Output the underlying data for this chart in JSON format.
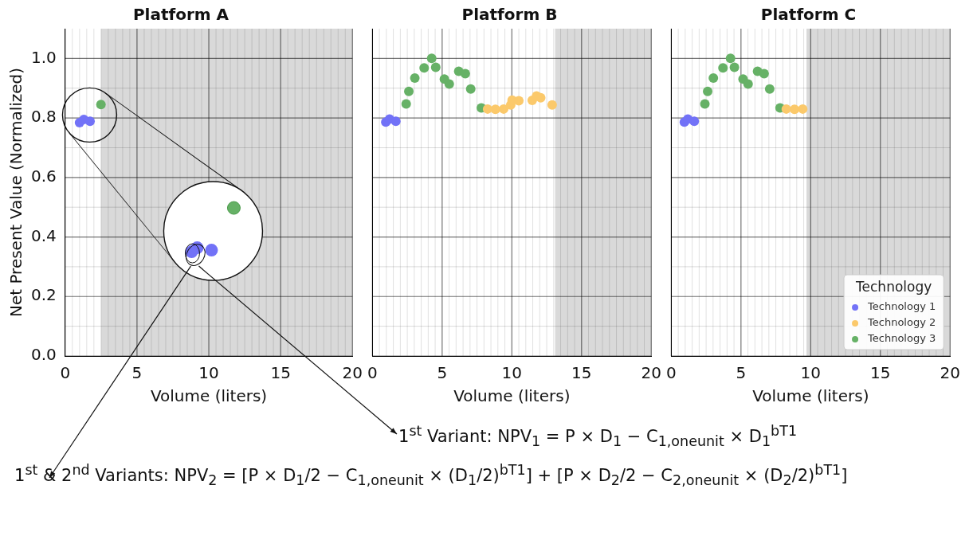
{
  "chart_data": [
    {
      "type": "scatter",
      "title": "Platform A",
      "xlabel": "Volume (liters)",
      "ylabel": "Net Present Value (Normalized)",
      "xlim": [
        0,
        20
      ],
      "ylim": [
        0,
        1.1
      ],
      "xticks": [
        0,
        5,
        10,
        15,
        20
      ],
      "yticks": [
        {
          "value": 0,
          "label": "0.0"
        },
        {
          "value": 0.2,
          "label": "0.2"
        },
        {
          "value": 0.4,
          "label": "0.4"
        },
        {
          "value": 0.6,
          "label": "0.6"
        },
        {
          "value": 0.8,
          "label": "0.8"
        },
        {
          "value": 1,
          "label": "1.0"
        }
      ],
      "grid": true,
      "legend": false,
      "marker": "circle",
      "bands": [
        {
          "axis": "x",
          "from": 2.5,
          "to": 20,
          "color": "#d9d9d9"
        }
      ],
      "series": [
        {
          "color": "#7272f7",
          "x": [
            1.0,
            1.3,
            1.73
          ],
          "values": [
            0.784,
            0.795,
            0.789
          ]
        },
        {
          "color": "#66b166",
          "x": [
            2.49
          ],
          "values": [
            0.845
          ]
        }
      ],
      "annotations": [
        "1$^{st}$ Variant: NPV$_{1}$ = P × D$_{1}$ − C$_{1,oneunit}$ × D$_{1}$$^{bT1}$",
        "1$^{st}$ & 2$^{nd}$ Variants: NPV$_{2}$ = [P × D$_{1}$/2 − C$_{1,oneunit}$ × (D$_{1}$/2)$^{bT1}$] + [P × D$_{2}$/2 − C$_{2,oneunit}$ × (D$_{2}$/2)$^{bT1}$]"
      ]
    },
    {
      "type": "scatter",
      "title": "Platform B",
      "xlabel": "Volume (liters)",
      "xlim": [
        0,
        20
      ],
      "ylim": [
        0,
        1.1
      ],
      "xticks": [
        0,
        5,
        10,
        15,
        20
      ],
      "yticks": [
        {
          "value": 0,
          "label": null
        },
        {
          "value": 0.2,
          "label": null
        },
        {
          "value": 0.4,
          "label": null
        },
        {
          "value": 0.6,
          "label": null
        },
        {
          "value": 0.8,
          "label": null
        },
        {
          "value": 1,
          "label": null
        }
      ],
      "tick_labels": "x",
      "grid": true,
      "legend": false,
      "marker": "circle",
      "bands": [
        {
          "axis": "x",
          "from": 13.1,
          "to": 20,
          "color": "#d9d9d9"
        }
      ],
      "series": [
        {
          "color": "#7272f7",
          "x": [
            0.96,
            1.23,
            1.68
          ],
          "values": [
            0.786,
            0.796,
            0.789
          ]
        },
        {
          "color": "#fbc96b",
          "x": [
            8.26,
            8.82,
            9.41,
            9.92,
            10.02,
            10.5,
            11.46,
            11.77,
            12.07,
            12.89
          ],
          "values": [
            0.83,
            0.829,
            0.83,
            0.844,
            0.86,
            0.858,
            0.859,
            0.874,
            0.868,
            0.844
          ]
        },
        {
          "color": "#66b166",
          "x": [
            2.42,
            2.61,
            3.04,
            3.71,
            4.25,
            4.54,
            5.16,
            5.51,
            6.19,
            6.66,
            7.05,
            7.81
          ],
          "values": [
            0.847,
            0.889,
            0.934,
            0.968,
            1.0,
            0.97,
            0.931,
            0.914,
            0.957,
            0.949,
            0.897,
            0.834
          ]
        }
      ]
    },
    {
      "type": "scatter",
      "title": "Platform C",
      "xlabel": "Volume (liters)",
      "xlim": [
        0,
        20
      ],
      "ylim": [
        0,
        1.1
      ],
      "xticks": [
        0,
        5,
        10,
        15,
        20
      ],
      "yticks": [
        {
          "value": 0,
          "label": null
        },
        {
          "value": 0.2,
          "label": null
        },
        {
          "value": 0.4,
          "label": null
        },
        {
          "value": 0.6,
          "label": null
        },
        {
          "value": 0.8,
          "label": null
        },
        {
          "value": 1,
          "label": null
        }
      ],
      "tick_labels": "x",
      "grid": true,
      "legend": "bottom right",
      "legend_title": "Technology",
      "marker": "circle",
      "bands": [
        {
          "axis": "x",
          "from": 9.7,
          "to": 20,
          "color": "#d9d9d9"
        }
      ],
      "series": [
        {
          "name": "Technology 1",
          "color": "#7272f7",
          "x": [
            0.94,
            1.19,
            1.65
          ],
          "values": [
            0.786,
            0.796,
            0.789
          ]
        },
        {
          "name": "Technology 2",
          "color": "#fbc96b",
          "x": [
            8.25,
            8.84,
            9.43
          ],
          "values": [
            0.83,
            0.829,
            0.83
          ]
        },
        {
          "name": "Technology 3",
          "color": "#66b166",
          "x": [
            2.41,
            2.61,
            3.02,
            3.71,
            4.25,
            4.53,
            5.15,
            5.51,
            6.19,
            6.66,
            7.06,
            7.8
          ],
          "values": [
            0.847,
            0.889,
            0.934,
            0.968,
            1.0,
            0.97,
            0.931,
            0.914,
            0.957,
            0.949,
            0.897,
            0.834
          ]
        }
      ]
    }
  ]
}
